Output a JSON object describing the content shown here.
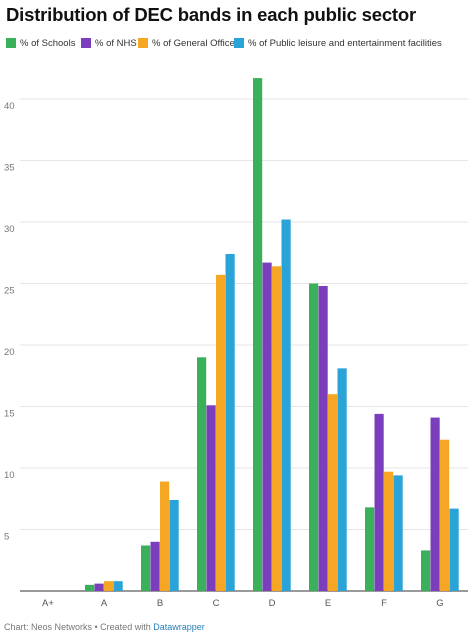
{
  "colors": {
    "schools": "#3bb05a",
    "nhs": "#7b3fbd",
    "general_office": "#f5a623",
    "leisure": "#2aa3d8",
    "grid": "#e6e6e6",
    "tick_text": "#777777"
  },
  "chart_data": {
    "type": "bar",
    "title": "Distribution of DEC bands in each public sector",
    "xlabel": "",
    "ylabel": "",
    "ylim": [
      0,
      45
    ],
    "yticks": [
      5,
      10,
      15,
      20,
      25,
      30,
      35,
      40
    ],
    "grid": true,
    "legend_position": "top-left",
    "categories": [
      "A+",
      "A",
      "B",
      "C",
      "D",
      "E",
      "F",
      "G"
    ],
    "series": [
      {
        "name": "% of Schools",
        "color": "#3bb05a",
        "values": [
          0,
          0.5,
          3.7,
          19,
          41.7,
          25,
          6.8,
          3.3
        ]
      },
      {
        "name": "% of NHS",
        "color": "#7b3fbd",
        "values": [
          0,
          0.6,
          4.0,
          15.1,
          26.7,
          24.8,
          14.4,
          14.1
        ]
      },
      {
        "name": "% of General Office",
        "color": "#f5a623",
        "values": [
          0,
          0.8,
          8.9,
          25.7,
          26.4,
          16.0,
          9.7,
          12.3
        ]
      },
      {
        "name": "% of Public leisure and entertainment facilities",
        "color": "#2aa3d8",
        "values": [
          0,
          0.8,
          7.4,
          27.4,
          30.2,
          18.1,
          9.4,
          6.7
        ]
      }
    ]
  },
  "footer": {
    "prefix": "Chart: Neos Networks • Created with ",
    "link": "Datawrapper"
  }
}
